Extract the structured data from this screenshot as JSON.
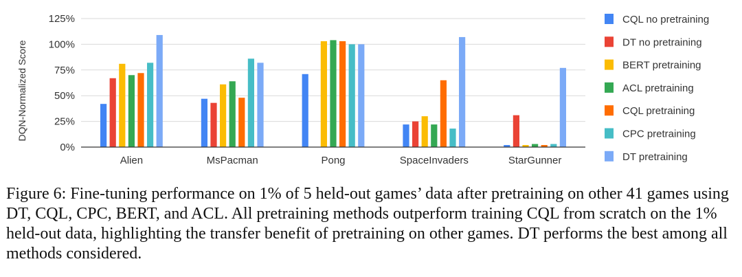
{
  "chart_data": {
    "type": "bar",
    "title": "",
    "xlabel": "",
    "ylabel": "DQN-Normalized Score",
    "ylim": [
      0,
      125
    ],
    "yticks": [
      "0%",
      "25%",
      "50%",
      "75%",
      "100%",
      "125%"
    ],
    "ytick_values": [
      0,
      25,
      50,
      75,
      100,
      125
    ],
    "grid": true,
    "legend_position": "right",
    "categories": [
      "Alien",
      "MsPacman",
      "Pong",
      "SpaceInvaders",
      "StarGunner"
    ],
    "series": [
      {
        "name": "CQL no pretraining",
        "color": "#4285f4",
        "values": [
          42,
          47,
          71,
          22,
          2
        ]
      },
      {
        "name": "DT no pretraining",
        "color": "#ea4335",
        "values": [
          67,
          43,
          0,
          25,
          31
        ]
      },
      {
        "name": "BERT pretraining",
        "color": "#fbbc04",
        "values": [
          81,
          61,
          103,
          30,
          2
        ]
      },
      {
        "name": "ACL pretraining",
        "color": "#34a853",
        "values": [
          70,
          64,
          104,
          22,
          3
        ]
      },
      {
        "name": "CQL pretraining",
        "color": "#ff6d01",
        "values": [
          72,
          48,
          103,
          65,
          2
        ]
      },
      {
        "name": "CPC pretraining",
        "color": "#46bdc6",
        "values": [
          82,
          86,
          100,
          18,
          3
        ]
      },
      {
        "name": "DT pretraining",
        "color": "#7baaf7",
        "values": [
          109,
          82,
          100,
          107,
          77
        ]
      }
    ]
  },
  "caption": "Figure 6: Fine-tuning performance on 1% of 5 held-out games’ data after pretraining on other 41 games using DT, CQL, CPC, BERT, and ACL. All pretraining methods outperform training CQL from scratch on the 1% held-out data, highlighting the transfer benefit of pretraining on other games. DT performs the best among all methods considered."
}
